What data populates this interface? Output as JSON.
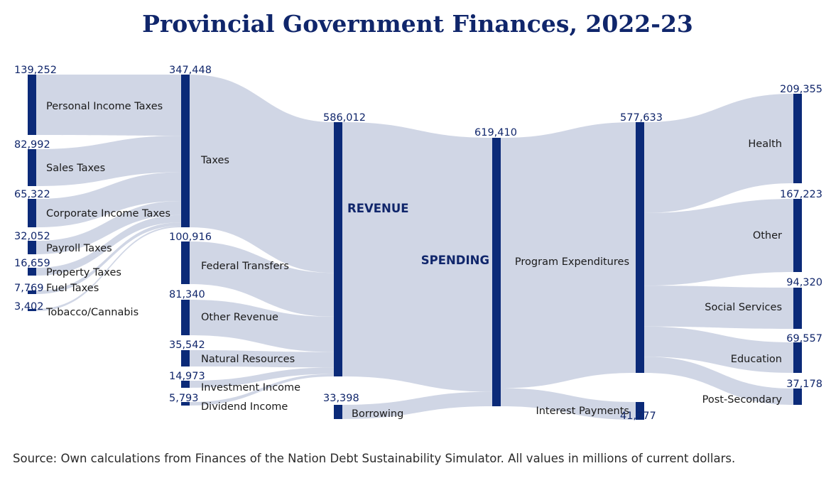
{
  "chart_data": {
    "type": "sankey",
    "title": "Provincial Government Finances, 2022-23",
    "source": "Source: Own calculations from Finances of the Nation Debt Sustainability Simulator. All values in millions of current dollars.",
    "nodes": [
      {
        "id": "personal_income_taxes",
        "label": "Personal Income Taxes",
        "value": "139,252"
      },
      {
        "id": "sales_taxes",
        "label": "Sales Taxes",
        "value": "82,992"
      },
      {
        "id": "corporate_income_taxes",
        "label": "Corporate Income Taxes",
        "value": "65,322"
      },
      {
        "id": "payroll_taxes",
        "label": "Payroll Taxes",
        "value": "32,052"
      },
      {
        "id": "property_taxes",
        "label": "Property Taxes",
        "value": "16,659"
      },
      {
        "id": "fuel_taxes",
        "label": "Fuel Taxes",
        "value": "7,769"
      },
      {
        "id": "tobacco_cannabis",
        "label": "Tobacco/Cannabis",
        "value": "3,402"
      },
      {
        "id": "taxes",
        "label": "Taxes",
        "value": "347,448"
      },
      {
        "id": "federal_transfers",
        "label": "Federal Transfers",
        "value": "100,916"
      },
      {
        "id": "other_revenue",
        "label": "Other Revenue",
        "value": "81,340"
      },
      {
        "id": "natural_resources",
        "label": "Natural Resources",
        "value": "35,542"
      },
      {
        "id": "investment_income",
        "label": "Investment Income",
        "value": "14,973"
      },
      {
        "id": "dividend_income",
        "label": "Dividend Income",
        "value": "5,793"
      },
      {
        "id": "revenue",
        "label": "REVENUE",
        "value": "586,012"
      },
      {
        "id": "borrowing",
        "label": "Borrowing",
        "value": "33,398"
      },
      {
        "id": "spending",
        "label": "SPENDING",
        "value": "619,410"
      },
      {
        "id": "program_expenditures",
        "label": "Program Expenditures",
        "value": "577,633"
      },
      {
        "id": "interest_payments",
        "label": "Interest Payments",
        "value": "41,777"
      },
      {
        "id": "health",
        "label": "Health",
        "value": "209,355"
      },
      {
        "id": "other",
        "label": "Other",
        "value": "167,223"
      },
      {
        "id": "social_services",
        "label": "Social Services",
        "value": "94,320"
      },
      {
        "id": "education",
        "label": "Education",
        "value": "69,557"
      },
      {
        "id": "post_secondary",
        "label": "Post-Secondary",
        "value": "37,178"
      }
    ],
    "links": [
      {
        "source": "personal_income_taxes",
        "target": "taxes",
        "value": 139252
      },
      {
        "source": "sales_taxes",
        "target": "taxes",
        "value": 82992
      },
      {
        "source": "corporate_income_taxes",
        "target": "taxes",
        "value": 65322
      },
      {
        "source": "payroll_taxes",
        "target": "taxes",
        "value": 32052
      },
      {
        "source": "property_taxes",
        "target": "taxes",
        "value": 16659
      },
      {
        "source": "fuel_taxes",
        "target": "taxes",
        "value": 7769
      },
      {
        "source": "tobacco_cannabis",
        "target": "taxes",
        "value": 3402
      },
      {
        "source": "taxes",
        "target": "revenue",
        "value": 347448
      },
      {
        "source": "federal_transfers",
        "target": "revenue",
        "value": 100916
      },
      {
        "source": "other_revenue",
        "target": "revenue",
        "value": 81340
      },
      {
        "source": "natural_resources",
        "target": "revenue",
        "value": 35542
      },
      {
        "source": "investment_income",
        "target": "revenue",
        "value": 14973
      },
      {
        "source": "dividend_income",
        "target": "revenue",
        "value": 5793
      },
      {
        "source": "revenue",
        "target": "spending",
        "value": 586012
      },
      {
        "source": "borrowing",
        "target": "spending",
        "value": 33398
      },
      {
        "source": "spending",
        "target": "program_expenditures",
        "value": 577633
      },
      {
        "source": "spending",
        "target": "interest_payments",
        "value": 41777
      },
      {
        "source": "program_expenditures",
        "target": "health",
        "value": 209355
      },
      {
        "source": "program_expenditures",
        "target": "other",
        "value": 167223
      },
      {
        "source": "program_expenditures",
        "target": "social_services",
        "value": 94320
      },
      {
        "source": "program_expenditures",
        "target": "education",
        "value": 69557
      },
      {
        "source": "program_expenditures",
        "target": "post_secondary",
        "value": 37178
      }
    ]
  },
  "colors": {
    "node": "#0b2a78",
    "link": "#cdd4e4",
    "title": "#10266b"
  }
}
